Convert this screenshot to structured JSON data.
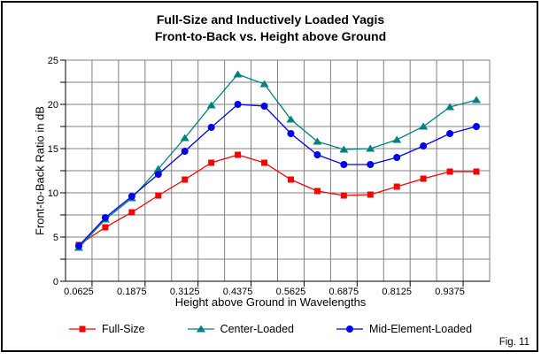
{
  "fig_label": "Fig. 11",
  "chart_data": {
    "type": "line",
    "title": "Full-Size and Inductively Loaded Yagis",
    "subtitle": "Front-to-Back vs. Height above Ground",
    "xlabel": "Height above Ground in Wavelengths",
    "ylabel": "Front-to-Back Ratio in dB",
    "x": [
      0.0625,
      0.125,
      0.1875,
      0.25,
      0.3125,
      0.375,
      0.4375,
      0.5,
      0.5625,
      0.625,
      0.6875,
      0.75,
      0.8125,
      0.875,
      0.9375,
      1.0
    ],
    "x_tick_labels": [
      "0.0625",
      "0.1875",
      "0.3125",
      "0.4375",
      "0.5625",
      "0.6875",
      "0.8125",
      "0.9375"
    ],
    "y_tick_labels": [
      "0",
      "5",
      "10",
      "15",
      "20",
      "25"
    ],
    "ylim": [
      0,
      25
    ],
    "y_gridline_step": 2.5,
    "grid": true,
    "legend_position": "bottom",
    "colors": {
      "gridline": "#808080",
      "axis": "#000000",
      "full_size": "#FF0000",
      "center_loaded": "#008080",
      "mid_element_loaded": "#0000F0"
    },
    "series": [
      {
        "name": "Full-Size",
        "marker": "square",
        "color": "#FF0000",
        "values": [
          4.1,
          6.1,
          7.8,
          9.7,
          11.5,
          13.4,
          14.3,
          13.4,
          11.5,
          10.2,
          9.7,
          9.8,
          10.7,
          11.6,
          12.4,
          12.4
        ]
      },
      {
        "name": "Center-Loaded",
        "marker": "triangle",
        "color": "#008080",
        "values": [
          3.8,
          7.0,
          9.4,
          12.7,
          16.2,
          19.9,
          23.4,
          22.3,
          18.3,
          15.8,
          14.9,
          15.0,
          16.0,
          17.5,
          19.7,
          20.5
        ]
      },
      {
        "name": "Mid-Element-Loaded",
        "marker": "circle",
        "color": "#0000F0",
        "values": [
          4.0,
          7.2,
          9.6,
          12.1,
          14.7,
          17.4,
          20.0,
          19.8,
          16.7,
          14.3,
          13.2,
          13.2,
          14.0,
          15.3,
          16.7,
          17.5
        ]
      }
    ]
  }
}
